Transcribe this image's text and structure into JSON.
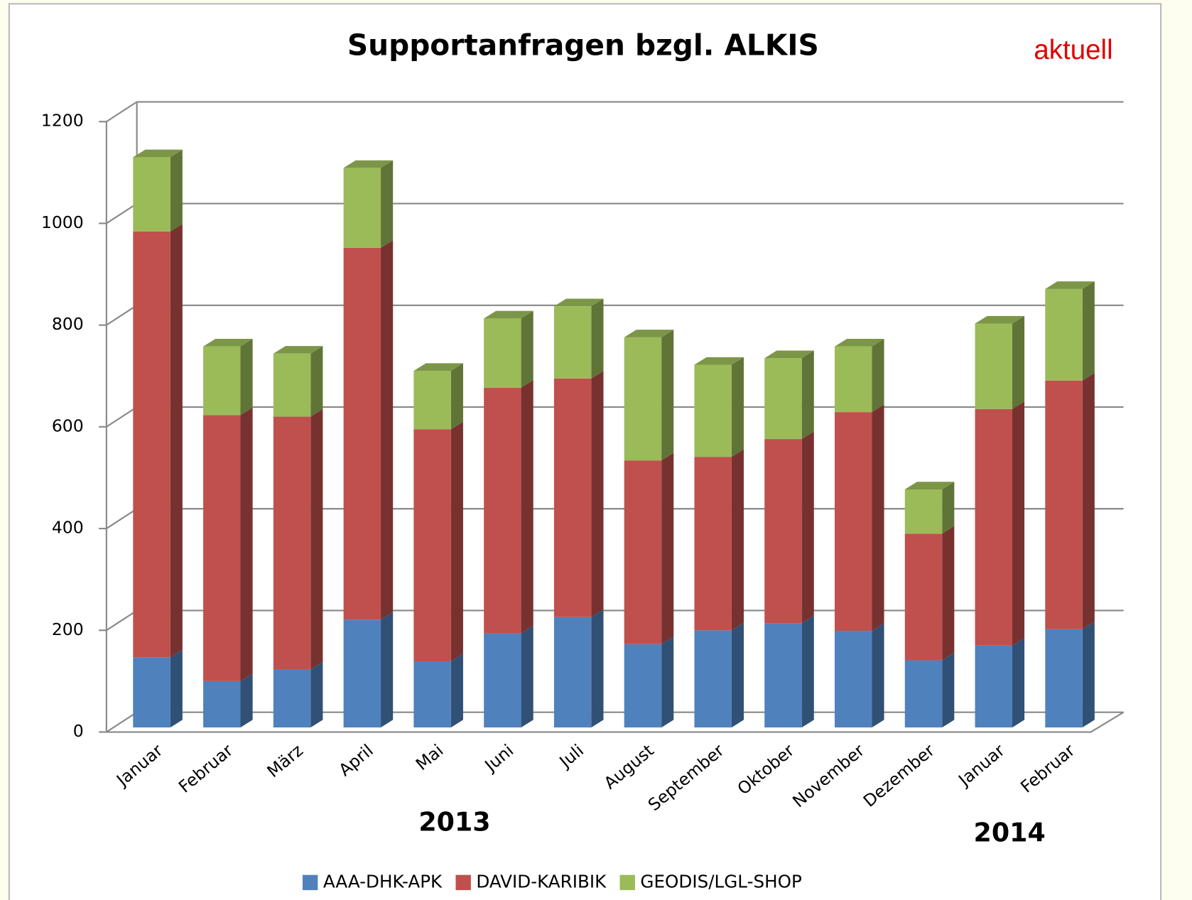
{
  "chart_data": {
    "type": "bar3d_stacked",
    "title": "Supportanfragen bzgl. ALKIS",
    "annotations": [
      "aktuell",
      "2013",
      "2014"
    ],
    "categories": [
      "Januar",
      "Februar",
      "März",
      "April",
      "Mai",
      "Juni",
      "Juli",
      "August",
      "September",
      "Oktober",
      "November",
      "Dezember",
      "Januar",
      "Februar"
    ],
    "series": [
      {
        "name": "AAA-DHK-APK",
        "color": "#4f81bd",
        "values": [
          138,
          91,
          114,
          212,
          130,
          185,
          217,
          164,
          191,
          205,
          190,
          132,
          161,
          193
        ]
      },
      {
        "name": "DAVID-KARIBIK",
        "color": "#c0504d",
        "values": [
          837,
          523,
          497,
          731,
          456,
          483,
          469,
          361,
          341,
          362,
          430,
          249,
          465,
          489
        ]
      },
      {
        "name": "GEODIS/LGL-SHOP",
        "color": "#9bbb59",
        "values": [
          146,
          135,
          124,
          157,
          115,
          136,
          142,
          242,
          181,
          159,
          129,
          87,
          168,
          180
        ]
      }
    ],
    "ylim": [
      0,
      1200
    ],
    "yticks": [
      0,
      200,
      400,
      600,
      800,
      1000,
      1200
    ],
    "grid": true,
    "legend": "bottom"
  }
}
